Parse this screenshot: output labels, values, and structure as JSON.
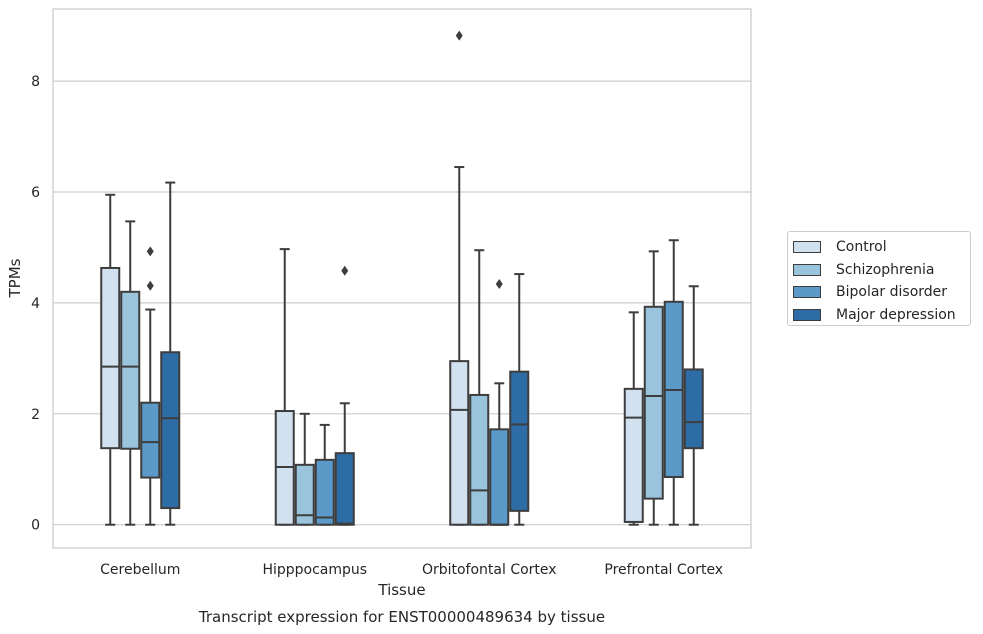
{
  "chart_data": {
    "type": "box",
    "title": "",
    "caption": "Transcript expression for ENST00000489634 by tissue",
    "xlabel": "Tissue",
    "ylabel": "TPMs",
    "ylim": [
      -0.42,
      9.3
    ],
    "yticks": [
      0,
      2,
      4,
      6,
      8
    ],
    "grid": "horizontal",
    "legend_position": "right",
    "categories": [
      "Cerebellum",
      "Hipppocampus",
      "Orbitofontal Cortex",
      "Prefrontal Cortex"
    ],
    "series": [
      {
        "name": "Control",
        "color": "#d1e1f0",
        "boxes": [
          {
            "whisker_low": 0.0,
            "q1": 1.38,
            "median": 2.85,
            "q3": 4.63,
            "whisker_high": 5.95,
            "outliers": []
          },
          {
            "whisker_low": 0.0,
            "q1": 0.0,
            "median": 1.04,
            "q3": 2.05,
            "whisker_high": 4.97,
            "outliers": []
          },
          {
            "whisker_low": 0.0,
            "q1": 0.0,
            "median": 2.07,
            "q3": 2.95,
            "whisker_high": 6.45,
            "outliers": [
              8.82
            ]
          },
          {
            "whisker_low": 0.0,
            "q1": 0.05,
            "median": 1.93,
            "q3": 2.45,
            "whisker_high": 3.83,
            "outliers": []
          }
        ]
      },
      {
        "name": "Schizophrenia",
        "color": "#9ac3dc",
        "boxes": [
          {
            "whisker_low": 0.0,
            "q1": 1.37,
            "median": 2.85,
            "q3": 4.2,
            "whisker_high": 5.47,
            "outliers": []
          },
          {
            "whisker_low": 0.0,
            "q1": 0.0,
            "median": 0.17,
            "q3": 1.08,
            "whisker_high": 2.0,
            "outliers": []
          },
          {
            "whisker_low": 0.0,
            "q1": 0.0,
            "median": 0.62,
            "q3": 2.34,
            "whisker_high": 4.95,
            "outliers": []
          },
          {
            "whisker_low": 0.0,
            "q1": 0.47,
            "median": 2.32,
            "q3": 3.93,
            "whisker_high": 4.93,
            "outliers": []
          }
        ]
      },
      {
        "name": "Bipolar disorder",
        "color": "#5b9ac8",
        "boxes": [
          {
            "whisker_low": 0.0,
            "q1": 0.85,
            "median": 1.49,
            "q3": 2.2,
            "whisker_high": 3.88,
            "outliers": [
              4.31,
              4.93
            ]
          },
          {
            "whisker_low": 0.0,
            "q1": 0.0,
            "median": 0.13,
            "q3": 1.17,
            "whisker_high": 1.8,
            "outliers": []
          },
          {
            "whisker_low": 0.0,
            "q1": 0.0,
            "median": 0.0,
            "q3": 1.72,
            "whisker_high": 2.55,
            "outliers": [
              4.34
            ]
          },
          {
            "whisker_low": 0.0,
            "q1": 0.86,
            "median": 2.43,
            "q3": 4.02,
            "whisker_high": 5.13,
            "outliers": []
          }
        ]
      },
      {
        "name": "Major depression",
        "color": "#2e6ca5",
        "boxes": [
          {
            "whisker_low": 0.0,
            "q1": 0.3,
            "median": 1.92,
            "q3": 3.11,
            "whisker_high": 6.17,
            "outliers": []
          },
          {
            "whisker_low": 0.0,
            "q1": 0.0,
            "median": 0.02,
            "q3": 1.29,
            "whisker_high": 2.19,
            "outliers": [
              4.58
            ]
          },
          {
            "whisker_low": 0.0,
            "q1": 0.25,
            "median": 1.81,
            "q3": 2.76,
            "whisker_high": 4.52,
            "outliers": []
          },
          {
            "whisker_low": 0.0,
            "q1": 1.38,
            "median": 1.85,
            "q3": 2.8,
            "whisker_high": 4.3,
            "outliers": []
          }
        ]
      }
    ]
  }
}
